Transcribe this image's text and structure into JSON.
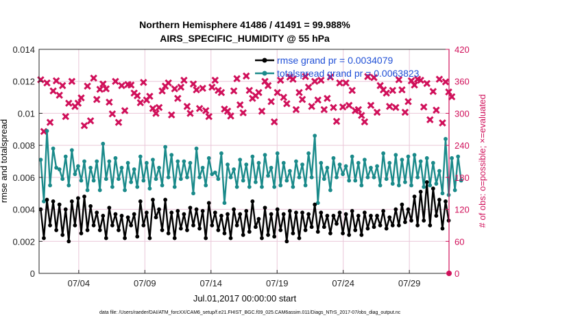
{
  "chart_data": {
    "type": "line",
    "title_line1": "Northern Hemisphere 41486 / 41491 = 99.988%",
    "title_line2": "AIRS_SPECIFIC_HUMIDITY @ 55 hPa",
    "xlabel": "Jul.01,2017 00:00:00 start",
    "ylabel_left": "rmse and totalspread",
    "ylabel_right": "# of obs: o=possible; ×=evaluated",
    "x_ticks": [
      "07/04",
      "07/09",
      "07/14",
      "07/19",
      "07/24",
      "07/29"
    ],
    "x_tick_days": [
      3,
      8,
      13,
      18,
      23,
      28
    ],
    "xlim_days": [
      0,
      31
    ],
    "ylim_left": [
      0,
      0.014
    ],
    "yticks_left": [
      "0",
      "0.002",
      "0.004",
      "0.006",
      "0.008",
      "0.01",
      "0.012",
      "0.014"
    ],
    "ylim_right": [
      0,
      420
    ],
    "yticks_right": [
      "0",
      "60",
      "120",
      "180",
      "240",
      "300",
      "360",
      "420"
    ],
    "footer": "data file: /Users/raeder/DAI/ATM_forcXX/CAM6_setup/f.e21.FHIST_BGC.f09_025.CAM6assim.011/Diags_NTrS_2017-07/obs_diag_output.nc",
    "series": [
      {
        "name": "rmse grand pr = 0.0034079",
        "color": "#000000",
        "values": [
          0.004,
          0.0022,
          0.0046,
          0.003,
          0.0045,
          0.0027,
          0.0043,
          0.0024,
          0.004,
          0.002,
          0.0045,
          0.003,
          0.0047,
          0.0025,
          0.0048,
          0.0027,
          0.0042,
          0.003,
          0.0038,
          0.0027,
          0.0036,
          0.0022,
          0.0041,
          0.003,
          0.0037,
          0.0027,
          0.0036,
          0.0022,
          0.0035,
          0.003,
          0.0037,
          0.0023,
          0.0045,
          0.003,
          0.0038,
          0.0022,
          0.0046,
          0.0035,
          0.004,
          0.0027,
          0.0046,
          0.0025,
          0.0038,
          0.0022,
          0.0039,
          0.0028,
          0.0037,
          0.0027,
          0.0041,
          0.003,
          0.004,
          0.0028,
          0.0039,
          0.0022,
          0.0044,
          0.003,
          0.0038,
          0.0027,
          0.0036,
          0.0025,
          0.0037,
          0.0022,
          0.004,
          0.003,
          0.0037,
          0.0024,
          0.0039,
          0.0026,
          0.0045,
          0.0029,
          0.0034,
          0.0022,
          0.0041,
          0.0024,
          0.0037,
          0.0023,
          0.004,
          0.0027,
          0.0037,
          0.002,
          0.0039,
          0.0025,
          0.0038,
          0.0022,
          0.0038,
          0.0027,
          0.0037,
          0.0029,
          0.0043,
          0.0026,
          0.0038,
          0.0029,
          0.0036,
          0.0025,
          0.0036,
          0.0031,
          0.0038,
          0.0025,
          0.0037,
          0.0024,
          0.0039,
          0.0027,
          0.0036,
          0.0024,
          0.0038,
          0.0028,
          0.0036,
          0.0029,
          0.0036,
          0.003,
          0.0039,
          0.0028,
          0.0035,
          0.003,
          0.004,
          0.003,
          0.0043,
          0.0032,
          0.004,
          0.0033,
          0.0048,
          0.003,
          0.0051,
          0.0033,
          0.0057,
          0.003,
          0.0053,
          0.0036,
          0.0046,
          0.0028,
          0.0045,
          0.0033
        ]
      },
      {
        "name": "totalspread grand pr = 0.0063823",
        "color": "#1a8a8a",
        "values": [
          0.0071,
          0.0045,
          0.0089,
          0.0055,
          0.0078,
          0.0066,
          0.0065,
          0.0059,
          0.0073,
          0.0055,
          0.0077,
          0.0062,
          0.0067,
          0.0058,
          0.007,
          0.0052,
          0.0066,
          0.0058,
          0.007,
          0.0052,
          0.0081,
          0.0059,
          0.007,
          0.0054,
          0.0072,
          0.0059,
          0.0066,
          0.0052,
          0.0069,
          0.0057,
          0.0065,
          0.0054,
          0.0073,
          0.0058,
          0.0069,
          0.0053,
          0.0071,
          0.0059,
          0.0066,
          0.0055,
          0.0079,
          0.006,
          0.0074,
          0.0054,
          0.007,
          0.0059,
          0.007,
          0.006,
          0.0069,
          0.005,
          0.0078,
          0.006,
          0.0066,
          0.0055,
          0.0072,
          0.0062,
          0.0063,
          0.0059,
          0.0075,
          0.0044,
          0.0068,
          0.006,
          0.0065,
          0.0054,
          0.0071,
          0.0058,
          0.0068,
          0.0054,
          0.0073,
          0.0057,
          0.0069,
          0.0054,
          0.0074,
          0.0061,
          0.0066,
          0.0054,
          0.0075,
          0.0055,
          0.0069,
          0.0058,
          0.0064,
          0.0054,
          0.007,
          0.006,
          0.0068,
          0.0055,
          0.0075,
          0.006,
          0.0086,
          0.0044,
          0.0069,
          0.0059,
          0.0066,
          0.0052,
          0.0072,
          0.006,
          0.0068,
          0.0062,
          0.0067,
          0.0058,
          0.0073,
          0.0058,
          0.0069,
          0.0055,
          0.0071,
          0.006,
          0.0066,
          0.006,
          0.0067,
          0.0055,
          0.0075,
          0.0059,
          0.0069,
          0.0056,
          0.0074,
          0.0055,
          0.0071,
          0.0057,
          0.0073,
          0.0055,
          0.0074,
          0.006,
          0.007,
          0.0054,
          0.0072,
          0.0055,
          0.0069,
          0.0056,
          0.0064,
          0.005,
          0.0084,
          0.0049,
          0.0072,
          0.0052,
          0.0073,
          0.0058
        ]
      },
      {
        "name": "obs evaluated",
        "color": "#d0105a",
        "values": [
          363,
          266,
          357,
          283,
          342,
          361,
          334,
          352,
          294,
          319,
          360,
          313,
          319,
          329,
          277,
          351,
          286,
          366,
          326,
          345,
          355,
          346,
          321,
          299,
          360,
          283,
          352,
          305,
          354,
          353,
          338,
          333,
          320,
          358,
          325,
          332,
          309,
          300,
          311,
          342,
          351,
          357,
          297,
          346,
          328,
          349,
          362,
          313,
          300,
          355,
          344,
          309,
          347,
          305,
          294,
          349,
          362,
          343,
          339,
          308,
          304,
          295,
          342,
          365,
          316,
          301,
          370,
          343,
          328,
          333,
          339,
          304,
          360,
          352,
          322,
          284,
          339,
          362,
          330,
          318,
          368,
          364,
          307,
          339,
          326,
          369,
          349,
          313,
          360,
          325,
          362,
          307,
          328,
          368,
          311,
          285,
          357,
          312,
          357,
          315,
          343,
          305,
          307,
          296,
          284,
          369,
          315,
          367,
          302,
          352,
          344,
          338,
          313,
          343,
          311,
          363,
          344,
          302,
          322,
          361,
          353,
          364,
          362,
          312,
          356,
          288,
          341,
          306,
          364,
          282,
          359,
          340,
          331
        ]
      }
    ]
  }
}
